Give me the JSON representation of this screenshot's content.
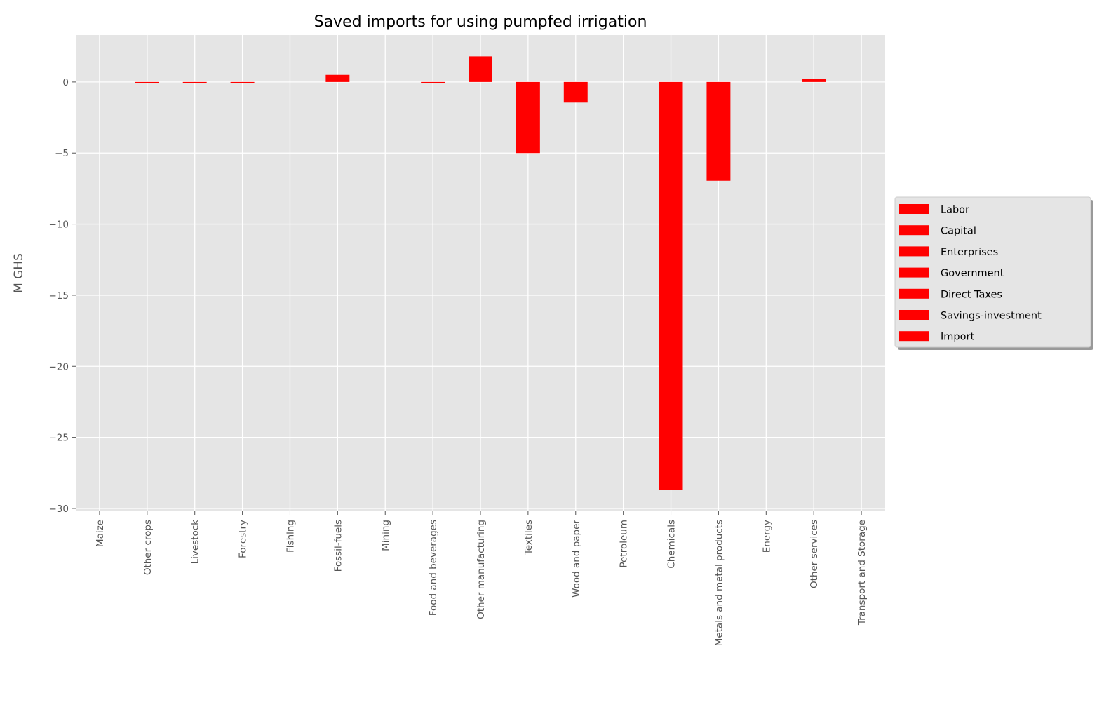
{
  "chart_data": {
    "type": "bar",
    "title": "Saved imports for using pumpfed irrigation",
    "xlabel": "",
    "ylabel": "M GHS",
    "ylim": [
      -30.2,
      3.3
    ],
    "yticks": [
      0,
      -5,
      -10,
      -15,
      -20,
      -25,
      -30
    ],
    "ytick_labels": [
      "0",
      "−5",
      "−10",
      "−15",
      "−20",
      "−25",
      "−30"
    ],
    "categories": [
      "Maize",
      "Other crops",
      "Livestock",
      "Forestry",
      "Fishing",
      "Fossil-fuels",
      "Mining",
      "Food and beverages",
      "Other manufacturing",
      "Textiles",
      "Wood and paper",
      "Petroleum",
      "Chemicals",
      "Metals and metal products",
      "Energy",
      "Other services",
      "Transport and Storage"
    ],
    "values": [
      0,
      -0.1,
      -0.05,
      -0.05,
      0,
      0.5,
      0,
      -0.1,
      1.8,
      -5.0,
      -1.45,
      0,
      -28.7,
      -6.95,
      0,
      0.2,
      0
    ],
    "bar_color": "#ff0000",
    "background_color": "#e5e5e5",
    "grid": true,
    "legend": {
      "placement": "center-right-outside",
      "entries": [
        "Labor",
        "Capital",
        "Enterprises",
        "Government",
        "Direct Taxes",
        "Savings-investment",
        "Import"
      ]
    }
  }
}
